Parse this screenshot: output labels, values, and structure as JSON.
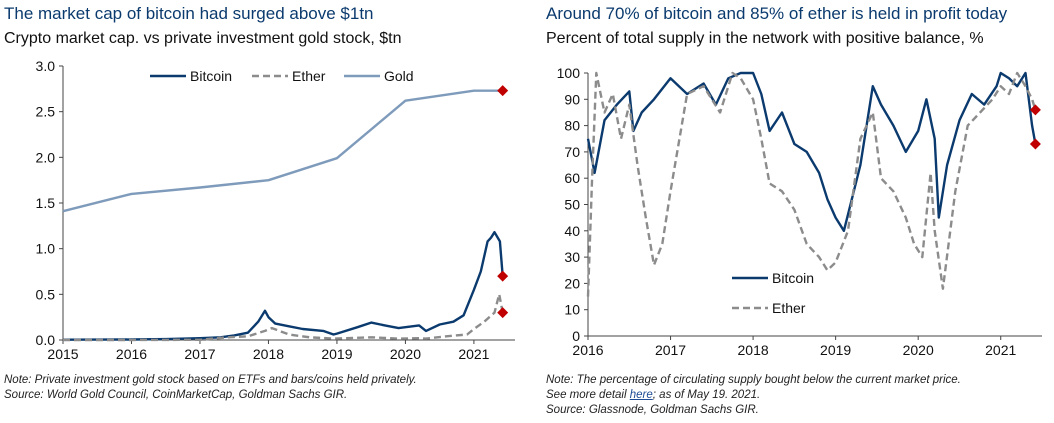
{
  "colors": {
    "bitcoin": "#0b3a6e",
    "ether": "#8c8c8c",
    "gold": "#7f9bbb",
    "marker": "#c00000",
    "title": "#0b3a6e"
  },
  "left": {
    "title": "The market cap of bitcoin had surged above $1tn",
    "subtitle": "Crypto market cap. vs private investment gold stock, $tn",
    "note_line1": "Note: Private investment gold stock based on ETFs and bars/coins held privately.",
    "note_line2": "Source: World Gold Council, CoinMarketCap, Goldman Sachs GIR."
  },
  "right": {
    "title": "Around 70% of bitcoin and 85% of ether is held in profit today",
    "subtitle": "Percent of total supply in the network with positive balance, %",
    "note_line1": "Note: The percentage of circulating supply bought below the current market price.",
    "note_prefix": "See more detail ",
    "note_link": "here",
    "note_suffix": "; as of May 19. 2021.",
    "note_line3": "Source: Glassnode, Goldman Sachs GIR."
  },
  "chart_data": [
    {
      "type": "line",
      "xlim": [
        2015,
        2021.6
      ],
      "ylim": [
        0,
        3.0
      ],
      "xticks": [
        "2015",
        "2016",
        "2017",
        "2018",
        "2019",
        "2020",
        "2021"
      ],
      "yticks": [
        "0.0",
        "0.5",
        "1.0",
        "1.5",
        "2.0",
        "2.5",
        "3.0"
      ],
      "legend": "top-center",
      "series": [
        {
          "name": "Bitcoin",
          "style": "solid",
          "x": [
            2015,
            2015.5,
            2016,
            2016.5,
            2017,
            2017.3,
            2017.5,
            2017.7,
            2017.85,
            2017.95,
            2018.0,
            2018.1,
            2018.3,
            2018.5,
            2018.8,
            2018.95,
            2019.0,
            2019.3,
            2019.5,
            2019.7,
            2019.9,
            2020.0,
            2020.2,
            2020.3,
            2020.5,
            2020.7,
            2020.85,
            2021.0,
            2021.1,
            2021.2,
            2021.25,
            2021.3,
            2021.38,
            2021.42
          ],
          "y": [
            0.003,
            0.004,
            0.006,
            0.01,
            0.02,
            0.03,
            0.05,
            0.08,
            0.2,
            0.32,
            0.25,
            0.18,
            0.15,
            0.12,
            0.1,
            0.06,
            0.07,
            0.14,
            0.19,
            0.16,
            0.13,
            0.14,
            0.16,
            0.1,
            0.17,
            0.2,
            0.27,
            0.55,
            0.75,
            1.08,
            1.12,
            1.18,
            1.08,
            0.7
          ]
        },
        {
          "name": "Ether",
          "style": "dashed",
          "x": [
            2015,
            2016,
            2016.5,
            2017,
            2017.4,
            2017.7,
            2017.95,
            2018.05,
            2018.3,
            2018.6,
            2018.95,
            2019.5,
            2019.9,
            2020.2,
            2020.3,
            2020.6,
            2020.9,
            2021.0,
            2021.15,
            2021.3,
            2021.37,
            2021.42
          ],
          "y": [
            0,
            0,
            0.001,
            0.002,
            0.03,
            0.04,
            0.1,
            0.13,
            0.06,
            0.03,
            0.015,
            0.03,
            0.015,
            0.02,
            0.015,
            0.04,
            0.06,
            0.12,
            0.2,
            0.3,
            0.5,
            0.3
          ]
        },
        {
          "name": "Gold",
          "style": "solid",
          "x": [
            2015,
            2016,
            2017,
            2018,
            2019,
            2020,
            2021,
            2021.4
          ],
          "y": [
            1.41,
            1.6,
            1.67,
            1.75,
            1.99,
            2.62,
            2.73,
            2.73
          ]
        }
      ],
      "markers": [
        {
          "x": 2021.42,
          "y": 2.73
        },
        {
          "x": 2021.42,
          "y": 0.7
        },
        {
          "x": 2021.42,
          "y": 0.3
        }
      ]
    },
    {
      "type": "line",
      "xlim": [
        2016,
        2021.5
      ],
      "ylim": [
        0,
        100
      ],
      "xticks": [
        "2016",
        "2017",
        "2018",
        "2019",
        "2020",
        "2021"
      ],
      "yticks": [
        "0",
        "10",
        "20",
        "30",
        "40",
        "50",
        "60",
        "70",
        "80",
        "90",
        "100"
      ],
      "legend": "center",
      "series": [
        {
          "name": "Bitcoin",
          "style": "solid",
          "x": [
            2016.0,
            2016.08,
            2016.2,
            2016.35,
            2016.5,
            2016.55,
            2016.65,
            2016.8,
            2017.0,
            2017.2,
            2017.4,
            2017.55,
            2017.7,
            2017.85,
            2018.0,
            2018.1,
            2018.2,
            2018.35,
            2018.5,
            2018.65,
            2018.8,
            2018.9,
            2019.0,
            2019.1,
            2019.3,
            2019.45,
            2019.55,
            2019.7,
            2019.85,
            2020.0,
            2020.1,
            2020.2,
            2020.25,
            2020.35,
            2020.5,
            2020.65,
            2020.8,
            2020.95,
            2021.0,
            2021.1,
            2021.2,
            2021.3,
            2021.38,
            2021.42
          ],
          "y": [
            75,
            62,
            82,
            88,
            93,
            78,
            85,
            90,
            98,
            92,
            96,
            88,
            98,
            100,
            100,
            92,
            78,
            85,
            73,
            70,
            62,
            52,
            45,
            40,
            65,
            95,
            88,
            80,
            70,
            78,
            90,
            75,
            45,
            65,
            82,
            92,
            88,
            95,
            100,
            98,
            95,
            100,
            80,
            73
          ]
        },
        {
          "name": "Ether",
          "style": "dashed",
          "x": [
            2016.0,
            2016.05,
            2016.1,
            2016.2,
            2016.3,
            2016.4,
            2016.5,
            2016.6,
            2016.7,
            2016.8,
            2016.9,
            2017.0,
            2017.2,
            2017.4,
            2017.6,
            2017.75,
            2017.85,
            2018.0,
            2018.1,
            2018.2,
            2018.35,
            2018.5,
            2018.65,
            2018.8,
            2018.9,
            2019.0,
            2019.15,
            2019.3,
            2019.45,
            2019.55,
            2019.7,
            2019.85,
            2019.95,
            2020.05,
            2020.15,
            2020.2,
            2020.3,
            2020.45,
            2020.6,
            2020.75,
            2020.9,
            2021.0,
            2021.1,
            2021.2,
            2021.3,
            2021.38,
            2021.42
          ],
          "y": [
            15,
            60,
            100,
            85,
            92,
            75,
            88,
            65,
            45,
            27,
            35,
            55,
            92,
            95,
            85,
            100,
            98,
            90,
            75,
            58,
            55,
            48,
            35,
            30,
            25,
            28,
            40,
            75,
            85,
            60,
            55,
            45,
            35,
            30,
            62,
            40,
            18,
            55,
            80,
            85,
            90,
            95,
            92,
            100,
            95,
            90,
            86
          ]
        }
      ],
      "markers": [
        {
          "x": 2021.42,
          "y": 86
        },
        {
          "x": 2021.42,
          "y": 73
        }
      ]
    }
  ]
}
